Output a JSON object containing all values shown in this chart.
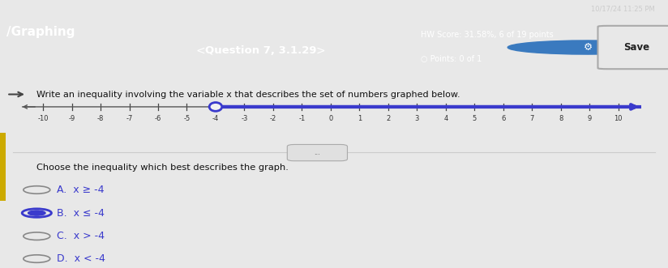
{
  "title": "/Graphing",
  "question": "Question 7, 3.1.29",
  "hw_score": "HW Score: 31.58%, 6 of 19 points",
  "points": "○ Points: 0 of 1",
  "instruction": "Write an inequality involving the variable x that describes the set of numbers graphed below.",
  "choose_text": "Choose the inequality which best describes the graph.",
  "number_line_min": -10,
  "number_line_max": 10,
  "critical_point": -4,
  "direction": "right",
  "closed_circle": false,
  "choices": [
    {
      "label": "A.",
      "text": "x ≥ -4",
      "selected": false
    },
    {
      "label": "B.",
      "text": "x ≤ -4",
      "selected": true
    },
    {
      "label": "C.",
      "text": "x > -4",
      "selected": false
    },
    {
      "label": "D.",
      "text": "x < -4",
      "selected": false
    }
  ],
  "top_bar_bg": "#1a1a2e",
  "header_bg": "#2e6da4",
  "header_text_color": "#ffffff",
  "body_bg": "#e8e8e8",
  "content_bg": "#f2f2f2",
  "nl_blue": "#3a3acc",
  "nl_gray": "#888888",
  "choice_color": "#3a3acc",
  "selected_fill": "#3a3acc",
  "unselected_color": "#888888",
  "save_bg": "#e0e0e0",
  "save_border": "#aaaaaa",
  "left_bar_color": "#cccccc"
}
